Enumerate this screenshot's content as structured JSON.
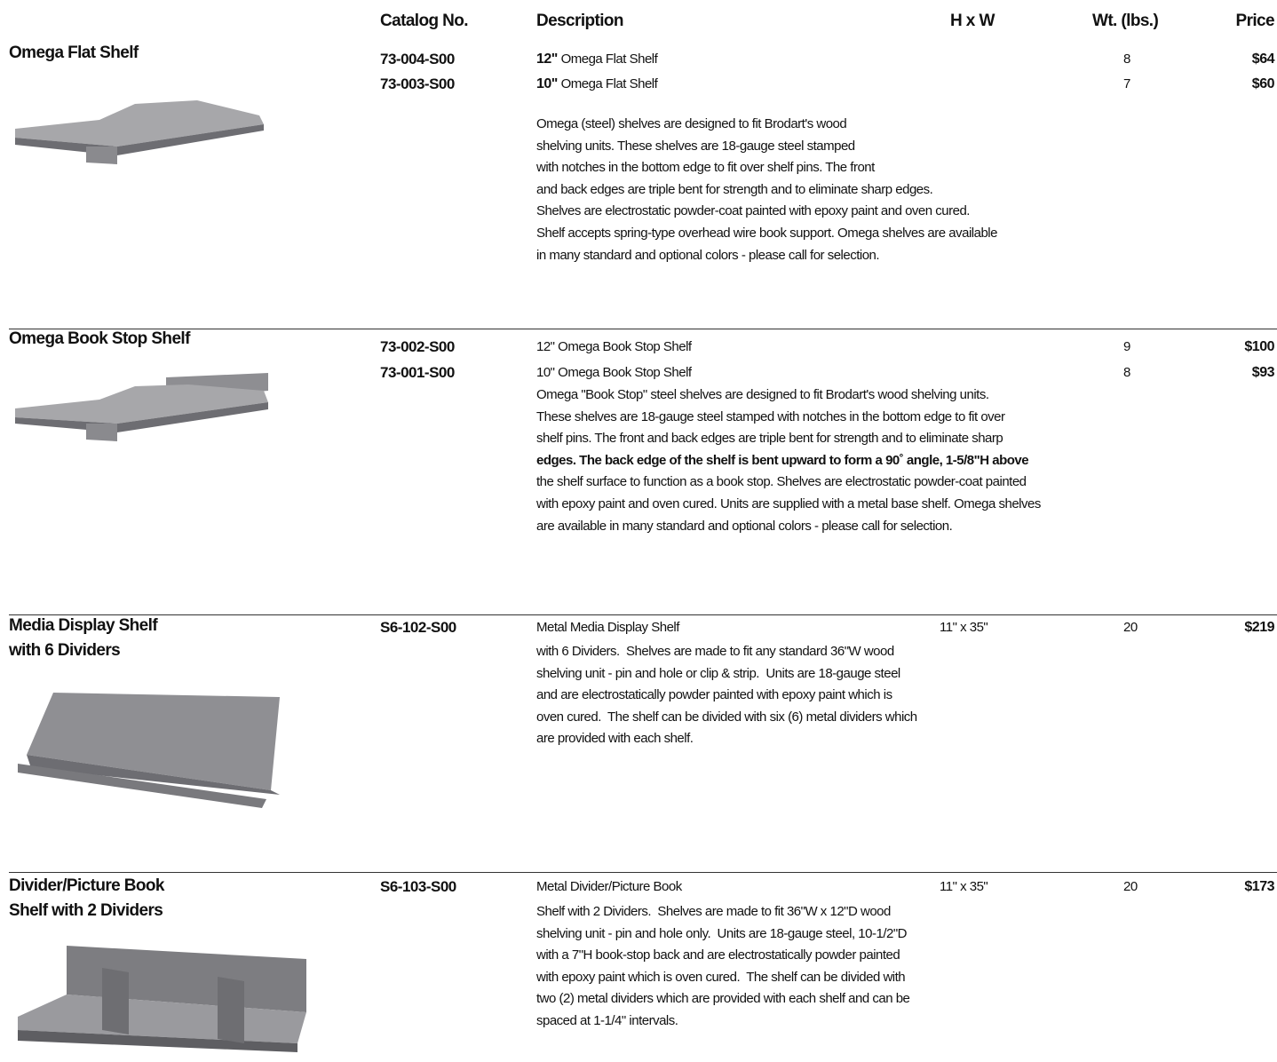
{
  "header": {
    "columns": [
      "Catalog No.",
      "Description",
      "H x W",
      "Wt. (lbs.)",
      "Price"
    ]
  },
  "sections": [
    {
      "title": [
        "Omega Flat Shelf"
      ],
      "rows": [
        {
          "catalog": "73-004-S00",
          "lead": "12\"",
          "description": "Omega Flat Shelf",
          "weight": "8",
          "price": "$64"
        },
        {
          "catalog": "73-003-S00",
          "lead": "10\"",
          "description": "Omega Flat Shelf",
          "weight": "7",
          "price": "$60"
        }
      ],
      "body": [
        "Omega (steel) shelves are designed to fit Brodart's wood",
        "shelving units. These shelves are 18-gauge steel stamped",
        "with notches in the bottom edge to fit over shelf pins. The front",
        "and back edges are triple bent for strength and to eliminate sharp edges.",
        "Shelves are electrostatic powder-coat painted with epoxy paint and oven cured.",
        "Shelf accepts spring-type overhead wire book support. Omega shelves are available",
        "in many standard and optional colors - please call for selection."
      ]
    },
    {
      "title": [
        "Omega Book Stop Shelf"
      ],
      "rows": [
        {
          "catalog": "73-002-S00",
          "description": "12\" Omega Book Stop Shelf",
          "weight": "9",
          "price": "$100"
        },
        {
          "catalog": "73-001-S00",
          "description": "10\" Omega Book Stop Shelf",
          "weight": "8",
          "price": "$93"
        }
      ],
      "body": [
        "Omega \"Book Stop\" steel shelves are designed to fit Brodart's wood shelving units.",
        "These shelves are 18-gauge steel stamped with notches in the bottom edge to fit over",
        "shelf pins. The front and back edges are triple bent for strength and to eliminate sharp",
        "edges. The back edge of the shelf is bent upward to form a 90˚ angle, 1-5/8\"H above",
        "the shelf surface to function as a book stop. Shelves are electrostatic powder-coat painted",
        "with epoxy paint and oven cured. Units are supplied with a metal base shelf. Omega shelves",
        "are available in many standard and optional colors - please call for selection."
      ]
    },
    {
      "title": [
        "Media Display Shelf",
        "with 6 Dividers"
      ],
      "rows": [
        {
          "catalog": "S6-102-S00",
          "description": "Metal Media Display Shelf",
          "size": "11\" x 35\"",
          "weight": "20",
          "price": "$219"
        }
      ],
      "body": [
        "with 6 Dividers.  Shelves are made to fit any standard 36\"W wood",
        "shelving unit - pin and hole or clip & strip.  Units are 18-gauge steel",
        "and are electrostatically powder painted with epoxy paint which is",
        "oven cured.  The shelf can be divided with six (6) metal dividers which",
        "are provided with each shelf."
      ]
    },
    {
      "title": [
        "Divider/Picture Book",
        "Shelf with 2 Dividers"
      ],
      "rows": [
        {
          "catalog": "S6-103-S00",
          "description": "Metal Divider/Picture Book",
          "size": "11\" x 35\"",
          "weight": "20",
          "price": "$173"
        }
      ],
      "body": [
        "Shelf with 2 Dividers.  Shelves are made to fit 36\"W x 12\"D wood",
        "shelving unit - pin and hole only.  Units are 18-gauge steel, 10-1/2\"D",
        "with a 7\"H book-stop back and are electrostatically powder painted",
        "with epoxy paint which is oven cured.  The shelf can be divided with",
        "two (2) metal dividers which are provided with each shelf and can be",
        "spaced at 1-1/4\" intervals."
      ]
    }
  ]
}
